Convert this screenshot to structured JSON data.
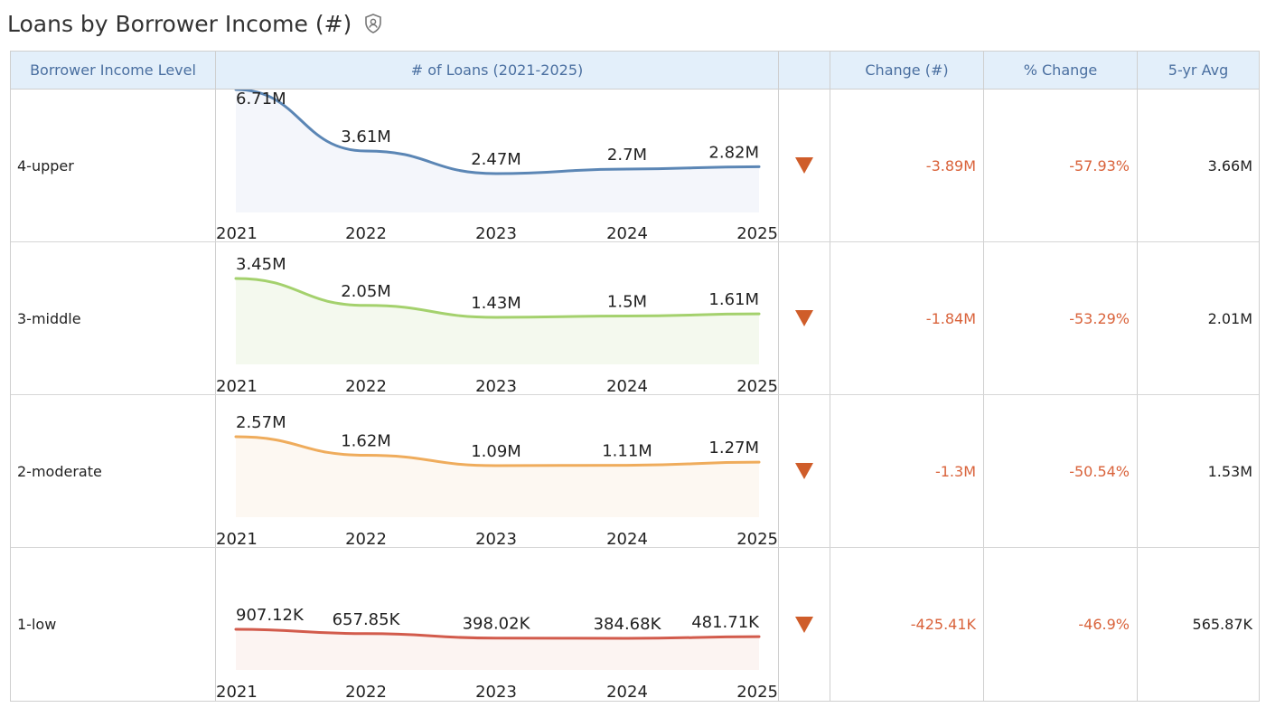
{
  "page": {
    "title": "Loans by Borrower Income (#)",
    "title_icon": "shield-user-icon"
  },
  "table": {
    "headers": {
      "income_level": "Borrower Income Level",
      "loans": "# of Loans (2021-2025)",
      "trend": "",
      "change_num": "Change (#)",
      "change_pct": "% Change",
      "avg5": "5-yr Avg"
    },
    "rows": [
      {
        "label": "4-upper",
        "trend_icon": "down-triangle-icon",
        "change_num": "-3.89M",
        "change_pct": "-57.93%",
        "avg5": "3.66M"
      },
      {
        "label": "3-middle",
        "trend_icon": "down-triangle-icon",
        "change_num": "-1.84M",
        "change_pct": "-53.29%",
        "avg5": "2.01M"
      },
      {
        "label": "2-moderate",
        "trend_icon": "down-triangle-icon",
        "change_num": "-1.3M",
        "change_pct": "-50.54%",
        "avg5": "1.53M"
      },
      {
        "label": "1-low",
        "trend_icon": "down-triangle-icon",
        "change_num": "-425.41K",
        "change_pct": "-46.9%",
        "avg5": "565.87K"
      }
    ],
    "colors": {
      "header_bg": "#e3effa",
      "header_text": "#4a6fa0",
      "negative": "#d9623a",
      "down_arrow": "#cf5d2a"
    }
  },
  "chart_data": [
    {
      "type": "line",
      "x": [
        "2021",
        "2022",
        "2023",
        "2024",
        "2025"
      ],
      "series": [
        {
          "values": [
            6710000,
            3610000,
            2470000,
            2700000,
            2820000
          ],
          "labels": [
            "6.71M",
            "3.61M",
            "2.47M",
            "2.7M",
            "2.82M"
          ]
        }
      ],
      "color": "#5b86b5",
      "fill": "#f4f6fb"
    },
    {
      "type": "line",
      "x": [
        "2021",
        "2022",
        "2023",
        "2024",
        "2025"
      ],
      "series": [
        {
          "values": [
            3450000,
            2050000,
            1430000,
            1500000,
            1610000
          ],
          "labels": [
            "3.45M",
            "2.05M",
            "1.43M",
            "1.5M",
            "1.61M"
          ]
        }
      ],
      "color": "#a4d16d",
      "fill": "#f4f9ee"
    },
    {
      "type": "line",
      "x": [
        "2021",
        "2022",
        "2023",
        "2024",
        "2025"
      ],
      "series": [
        {
          "values": [
            2570000,
            1620000,
            1090000,
            1110000,
            1270000
          ],
          "labels": [
            "2.57M",
            "1.62M",
            "1.09M",
            "1.11M",
            "1.27M"
          ]
        }
      ],
      "color": "#efac5c",
      "fill": "#fdf8f2"
    },
    {
      "type": "line",
      "x": [
        "2021",
        "2022",
        "2023",
        "2024",
        "2025"
      ],
      "series": [
        {
          "values": [
            907120,
            657850,
            398020,
            384680,
            481710
          ],
          "labels": [
            "907.12K",
            "657.85K",
            "398.02K",
            "384.68K",
            "481.71K"
          ]
        }
      ],
      "color": "#d25b4c",
      "fill": "#fcf4f2"
    }
  ]
}
